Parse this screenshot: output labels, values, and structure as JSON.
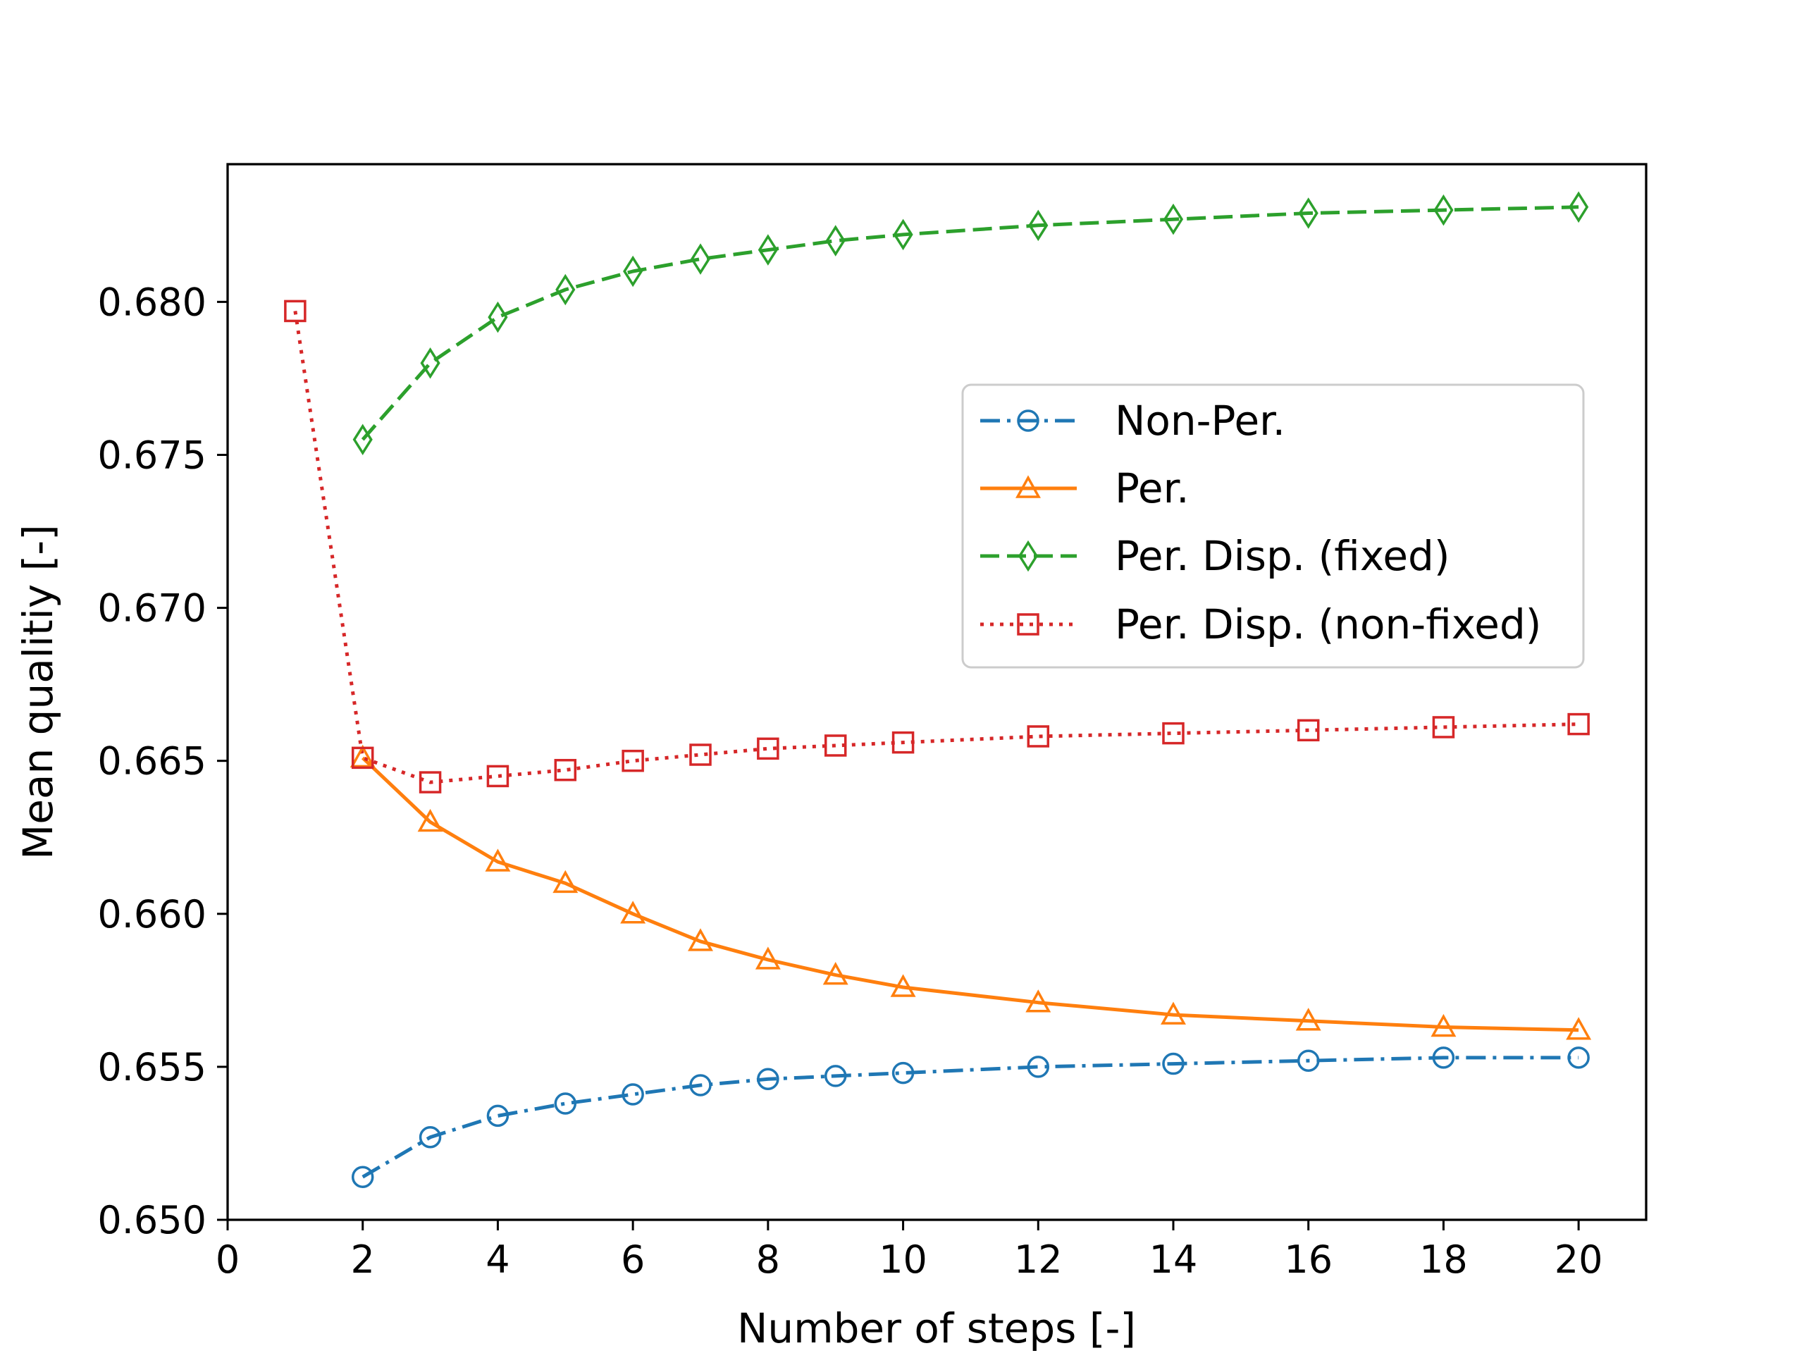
{
  "chart_data": {
    "type": "line",
    "title": "",
    "xlabel": "Number of steps [-]",
    "ylabel": "Mean qualitiy [-]",
    "xlim": [
      0,
      21
    ],
    "ylim": [
      0.65,
      0.6845
    ],
    "grid": false,
    "legend_position": "center-right",
    "x_ticks": [
      0,
      2,
      4,
      6,
      8,
      10,
      12,
      14,
      16,
      18,
      20
    ],
    "x_tick_labels": [
      "0",
      "2",
      "4",
      "6",
      "8",
      "10",
      "12",
      "14",
      "16",
      "18",
      "20"
    ],
    "y_ticks": [
      0.65,
      0.655,
      0.66,
      0.665,
      0.67,
      0.675,
      0.68
    ],
    "y_tick_labels": [
      "0.650",
      "0.655",
      "0.660",
      "0.665",
      "0.670",
      "0.675",
      "0.680"
    ],
    "series": [
      {
        "name": "Non-Per.",
        "color": "#1f77b4",
        "line_style": "dashdot",
        "marker": "circle",
        "x": [
          2,
          3,
          4,
          5,
          6,
          7,
          8,
          9,
          10,
          12,
          14,
          16,
          18,
          20
        ],
        "y": [
          0.6514,
          0.6527,
          0.6534,
          0.6538,
          0.6541,
          0.6544,
          0.6546,
          0.6547,
          0.6548,
          0.655,
          0.6551,
          0.6552,
          0.6553,
          0.6553
        ]
      },
      {
        "name": "Per.",
        "color": "#ff7f0e",
        "line_style": "solid",
        "marker": "triangle",
        "x": [
          2,
          3,
          4,
          5,
          6,
          7,
          8,
          9,
          10,
          12,
          14,
          16,
          18,
          20
        ],
        "y": [
          0.6651,
          0.663,
          0.6617,
          0.661,
          0.66,
          0.6591,
          0.6585,
          0.658,
          0.6576,
          0.6571,
          0.6567,
          0.6565,
          0.6563,
          0.6562
        ]
      },
      {
        "name": "Per. Disp. (fixed)",
        "color": "#2ca02c",
        "line_style": "dashed",
        "marker": "thin_diamond",
        "x": [
          2,
          3,
          4,
          5,
          6,
          7,
          8,
          9,
          10,
          12,
          14,
          16,
          18,
          20
        ],
        "y": [
          0.6755,
          0.678,
          0.6795,
          0.6804,
          0.681,
          0.6814,
          0.6817,
          0.682,
          0.6822,
          0.6825,
          0.6827,
          0.6829,
          0.683,
          0.6831
        ]
      },
      {
        "name": "Per. Disp. (non-fixed)",
        "color": "#d62728",
        "line_style": "dotted",
        "marker": "square",
        "x": [
          1,
          2,
          3,
          4,
          5,
          6,
          7,
          8,
          9,
          10,
          12,
          14,
          16,
          18,
          20
        ],
        "y": [
          0.6797,
          0.6651,
          0.6643,
          0.6645,
          0.6647,
          0.665,
          0.6652,
          0.6654,
          0.6655,
          0.6656,
          0.6658,
          0.6659,
          0.666,
          0.6661,
          0.6662
        ]
      }
    ]
  }
}
